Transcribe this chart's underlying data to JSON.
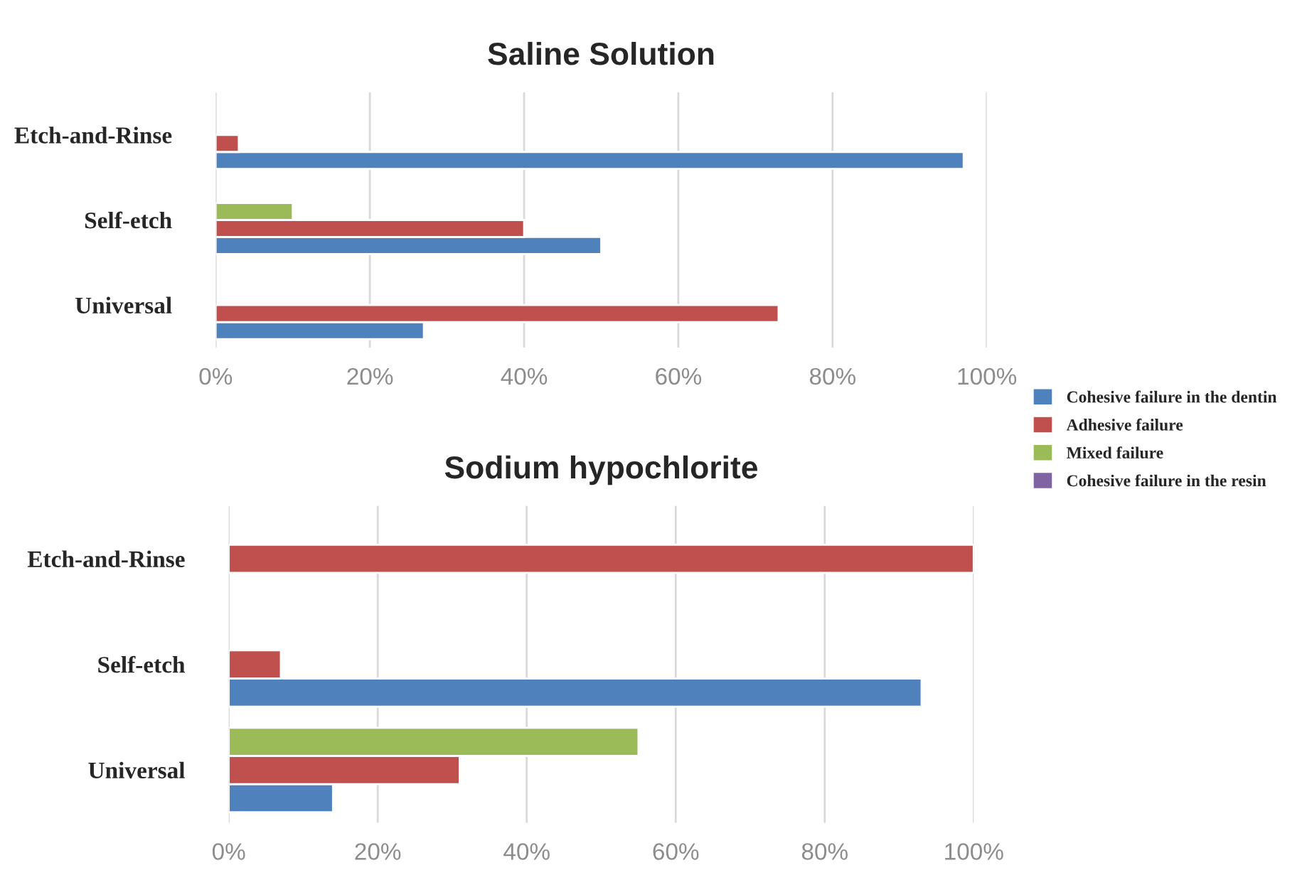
{
  "chart_data": [
    {
      "type": "bar",
      "orientation": "horizontal",
      "title": "Saline Solution",
      "categories": [
        "Etch-and-Rinse",
        "Self-etch",
        "Universal"
      ],
      "series": [
        {
          "name": "Cohesive failure in the dentin",
          "color": "#4f81bd",
          "values": [
            97,
            50,
            27
          ]
        },
        {
          "name": "Adhesive failure",
          "color": "#c0504d",
          "values": [
            3,
            40,
            73
          ]
        },
        {
          "name": "Mixed failure",
          "color": "#9bbb59",
          "values": [
            null,
            10,
            null
          ]
        },
        {
          "name": "Cohesive failure in the resin",
          "color": "#8064a2",
          "values": [
            null,
            null,
            null
          ]
        }
      ],
      "xlim": [
        0,
        100
      ],
      "xticks": [
        {
          "value": 0,
          "label": "0%"
        },
        {
          "value": 20,
          "label": "20%"
        },
        {
          "value": 40,
          "label": "40%"
        },
        {
          "value": 60,
          "label": "60%"
        },
        {
          "value": 80,
          "label": "80%"
        },
        {
          "value": 100,
          "label": "100%"
        }
      ],
      "grid": "x",
      "legend": "bottom right"
    },
    {
      "type": "bar",
      "orientation": "horizontal",
      "title": "Sodium hypochlorite",
      "categories": [
        "Etch-and-Rinse",
        "Self-etch",
        "Universal"
      ],
      "series": [
        {
          "color": "#4f81bd",
          "values": [
            null,
            93,
            14
          ]
        },
        {
          "color": "#c0504d",
          "values": [
            100,
            7,
            31
          ]
        },
        {
          "color": "#9bbb59",
          "values": [
            null,
            null,
            55
          ]
        }
      ],
      "xlim": [
        0,
        100
      ],
      "xticks": [
        {
          "value": 0,
          "label": "0%"
        },
        {
          "value": 20,
          "label": "20%"
        },
        {
          "value": 40,
          "label": "40%"
        },
        {
          "value": 60,
          "label": "60%"
        },
        {
          "value": 80,
          "label": "80%"
        },
        {
          "value": 100,
          "label": "100%"
        }
      ],
      "grid": "x"
    }
  ]
}
